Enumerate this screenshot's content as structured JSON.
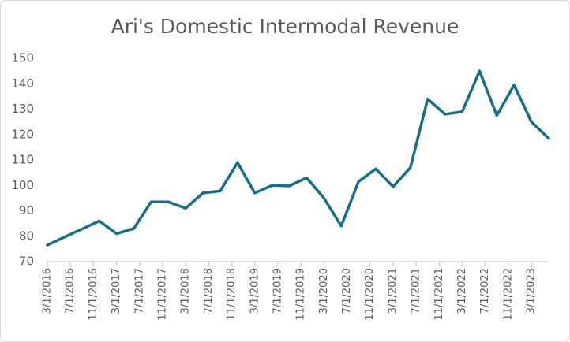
{
  "chart_data": {
    "type": "line",
    "title": "Ari's Domestic Intermodal Revenue",
    "x": [
      "3/1/2016",
      "6/1/2016",
      "9/1/2016",
      "12/1/2016",
      "3/1/2017",
      "6/1/2017",
      "9/1/2017",
      "12/1/2017",
      "3/1/2018",
      "6/1/2018",
      "9/1/2018",
      "12/1/2018",
      "3/1/2019",
      "6/1/2019",
      "9/1/2019",
      "12/1/2019",
      "3/1/2020",
      "6/1/2020",
      "9/1/2020",
      "12/1/2020",
      "3/1/2021",
      "6/1/2021",
      "9/1/2021",
      "12/1/2021",
      "3/1/2022",
      "6/1/2022",
      "9/1/2022",
      "12/1/2022",
      "3/1/2023",
      "6/1/2023"
    ],
    "series": [
      {
        "color": "#176e86",
        "values": [
          76.5,
          79.7,
          82.8,
          86,
          81,
          83,
          93.5,
          93.5,
          91,
          97,
          97.8,
          109,
          97,
          100,
          99.8,
          103,
          95,
          84,
          101.5,
          106.5,
          99.5,
          107,
          134,
          128,
          129,
          145,
          127.5,
          139.5,
          125,
          118.5
        ]
      }
    ],
    "xlim": [
      "3/1/2016",
      "6/1/2023"
    ],
    "xticks": [
      "3/1/2016",
      "7/1/2016",
      "11/1/2016",
      "3/1/2017",
      "7/1/2017",
      "11/1/2017",
      "3/1/2018",
      "7/1/2018",
      "11/1/2018",
      "3/1/2019",
      "7/1/2019",
      "11/1/2019",
      "3/1/2020",
      "7/1/2020",
      "11/1/2020",
      "3/1/2021",
      "7/1/2021",
      "11/1/2021",
      "3/1/2022",
      "7/1/2022",
      "11/1/2022",
      "3/1/2023"
    ],
    "ylim": [
      70,
      150
    ],
    "yticks": [
      70,
      80,
      90,
      100,
      110,
      120,
      130,
      140,
      150
    ],
    "grid": false
  }
}
